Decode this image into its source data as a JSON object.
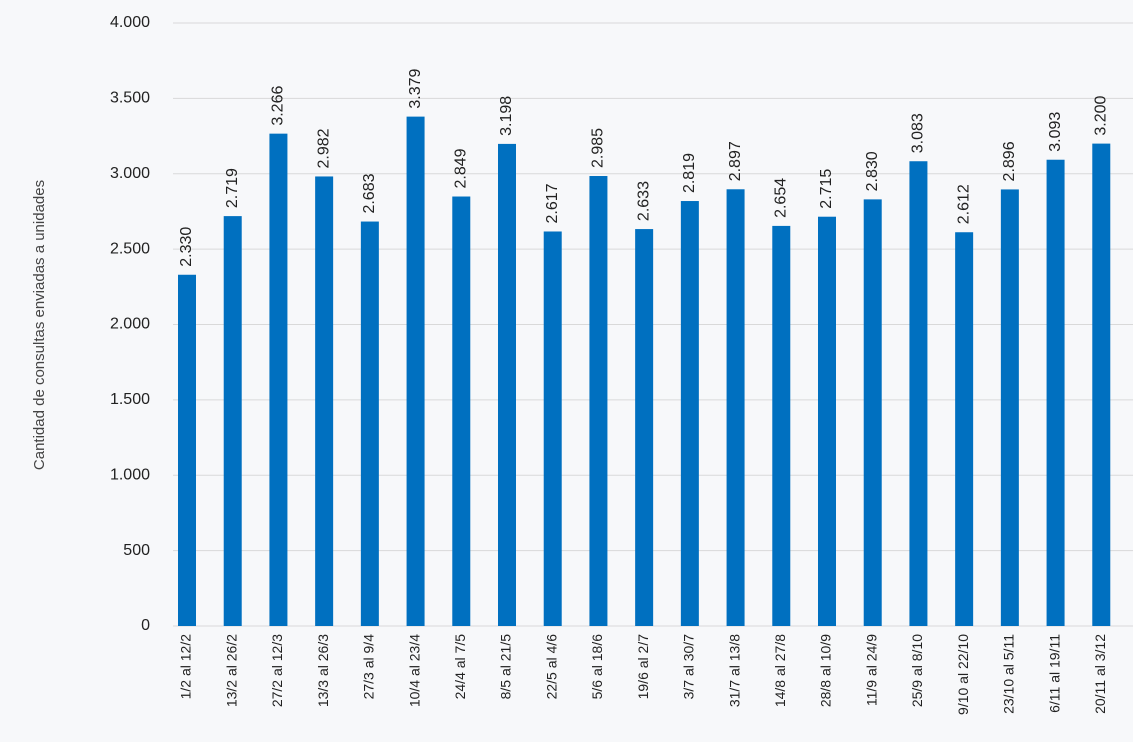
{
  "chart_data": {
    "type": "bar",
    "ylabel": "Cantidad de consultas enviadas a unidades",
    "categories": [
      "1/2 al 12/2",
      "13/2 al 26/2",
      "27/2 al 12/3",
      "13/3 al 26/3",
      "27/3 al 9/4",
      "10/4 al 23/4",
      "24/4 al 7/5",
      "8/5 al 21/5",
      "22/5 al 4/6",
      "5/6 al 18/6",
      "19/6 al 2/7",
      "3/7 al 30/7",
      "31/7 al 13/8",
      "14/8 al 27/8",
      "28/8 al 10/9",
      "11/9 al 24/9",
      "25/9 al 8/10",
      "9/10 al 22/10",
      "23/10 al 5/11",
      "6/11 al 19/11",
      "20/11 al 3/12"
    ],
    "values": [
      2330,
      2719,
      3266,
      2982,
      2683,
      3379,
      2849,
      3198,
      2617,
      2985,
      2633,
      2819,
      2897,
      2654,
      2715,
      2830,
      3083,
      2612,
      2896,
      3093,
      3200
    ],
    "value_labels": [
      "2.330",
      "2.719",
      "3.266",
      "2.982",
      "2.683",
      "3.379",
      "2.849",
      "3.198",
      "2.617",
      "2.985",
      "2.633",
      "2.819",
      "2.897",
      "2.654",
      "2.715",
      "2.830",
      "3.083",
      "2.612",
      "2.896",
      "3.093",
      "3.200"
    ],
    "color": "#0070c0",
    "ylim": [
      0,
      4000
    ],
    "yticks": [
      0,
      500,
      {
        "value": 1000,
        "label": "1.000"
      },
      {
        "value": 1500,
        "label": "1.500"
      },
      {
        "value": 2000,
        "label": "2.000"
      },
      {
        "value": 2500,
        "label": "2.500"
      },
      {
        "value": 3000,
        "label": "3.000"
      },
      {
        "value": 3500,
        "label": "3.500"
      },
      {
        "value": 4000,
        "label": "4.000"
      }
    ],
    "grid": true
  }
}
